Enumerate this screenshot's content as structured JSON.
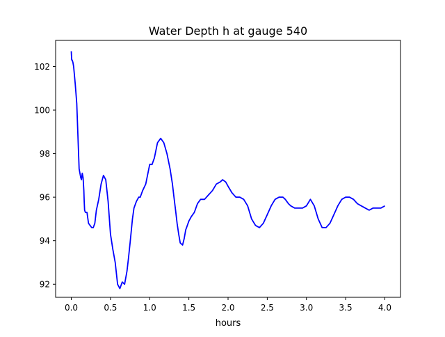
{
  "chart_data": {
    "type": "line",
    "title": "Water Depth h at gauge 540",
    "xlabel": "hours",
    "ylabel": "",
    "xlim": [
      -0.2,
      4.2
    ],
    "ylim": [
      91.4,
      103.2
    ],
    "xticks": [
      0.0,
      0.5,
      1.0,
      1.5,
      2.0,
      2.5,
      3.0,
      3.5,
      4.0
    ],
    "xtick_labels": [
      "0.0",
      "0.5",
      "1.0",
      "1.5",
      "2.0",
      "2.5",
      "3.0",
      "3.5",
      "4.0"
    ],
    "yticks": [
      92,
      94,
      96,
      98,
      100,
      102
    ],
    "ytick_labels": [
      "92",
      "94",
      "96",
      "98",
      "100",
      "102"
    ],
    "grid": false,
    "series": [
      {
        "color": "#0000ff",
        "x": [
          0.0,
          0.005,
          0.01,
          0.02,
          0.03,
          0.05,
          0.07,
          0.1,
          0.12,
          0.13,
          0.14,
          0.15,
          0.16,
          0.165,
          0.17,
          0.18,
          0.2,
          0.22,
          0.24,
          0.26,
          0.28,
          0.3,
          0.32,
          0.35,
          0.38,
          0.41,
          0.44,
          0.47,
          0.5,
          0.53,
          0.56,
          0.59,
          0.62,
          0.65,
          0.68,
          0.71,
          0.73,
          0.75,
          0.78,
          0.8,
          0.83,
          0.86,
          0.88,
          0.91,
          0.95,
          1.0,
          1.03,
          1.06,
          1.1,
          1.14,
          1.18,
          1.22,
          1.26,
          1.29,
          1.31,
          1.33,
          1.35,
          1.37,
          1.39,
          1.42,
          1.44,
          1.46,
          1.47,
          1.5,
          1.53,
          1.57,
          1.61,
          1.65,
          1.7,
          1.75,
          1.8,
          1.85,
          1.9,
          1.93,
          1.97,
          2.0,
          2.05,
          2.1,
          2.15,
          2.2,
          2.25,
          2.3,
          2.35,
          2.4,
          2.45,
          2.5,
          2.55,
          2.6,
          2.65,
          2.7,
          2.73,
          2.77,
          2.8,
          2.85,
          2.9,
          2.95,
          3.0,
          3.05,
          3.1,
          3.15,
          3.2,
          3.25,
          3.3,
          3.35,
          3.4,
          3.45,
          3.5,
          3.55,
          3.6,
          3.65,
          3.7,
          3.75,
          3.8,
          3.85,
          3.9,
          3.95,
          4.0
        ],
        "y": [
          102.7,
          102.3,
          102.3,
          102.2,
          102.0,
          101.2,
          100.3,
          97.3,
          96.9,
          96.8,
          97.1,
          96.9,
          96.3,
          95.8,
          95.4,
          95.3,
          95.3,
          94.8,
          94.7,
          94.6,
          94.6,
          94.8,
          95.4,
          95.9,
          96.6,
          97.0,
          96.8,
          95.8,
          94.3,
          93.6,
          93.0,
          92.0,
          91.8,
          92.1,
          92.0,
          92.6,
          93.2,
          93.9,
          95.0,
          95.5,
          95.8,
          96.0,
          96.0,
          96.3,
          96.6,
          97.5,
          97.5,
          97.8,
          98.5,
          98.7,
          98.5,
          98.0,
          97.3,
          96.6,
          96.0,
          95.4,
          94.8,
          94.3,
          93.9,
          93.8,
          94.1,
          94.5,
          94.6,
          94.9,
          95.1,
          95.3,
          95.7,
          95.9,
          95.9,
          96.1,
          96.3,
          96.6,
          96.7,
          96.8,
          96.7,
          96.5,
          96.2,
          96.0,
          96.0,
          95.9,
          95.6,
          95.0,
          94.7,
          94.6,
          94.8,
          95.2,
          95.6,
          95.9,
          96.0,
          96.0,
          95.9,
          95.7,
          95.6,
          95.5,
          95.5,
          95.5,
          95.6,
          95.9,
          95.6,
          95.0,
          94.6,
          94.6,
          94.8,
          95.2,
          95.6,
          95.9,
          96.0,
          96.0,
          95.9,
          95.7,
          95.6,
          95.5,
          95.4,
          95.5,
          95.5,
          95.5,
          95.6
        ]
      }
    ]
  }
}
